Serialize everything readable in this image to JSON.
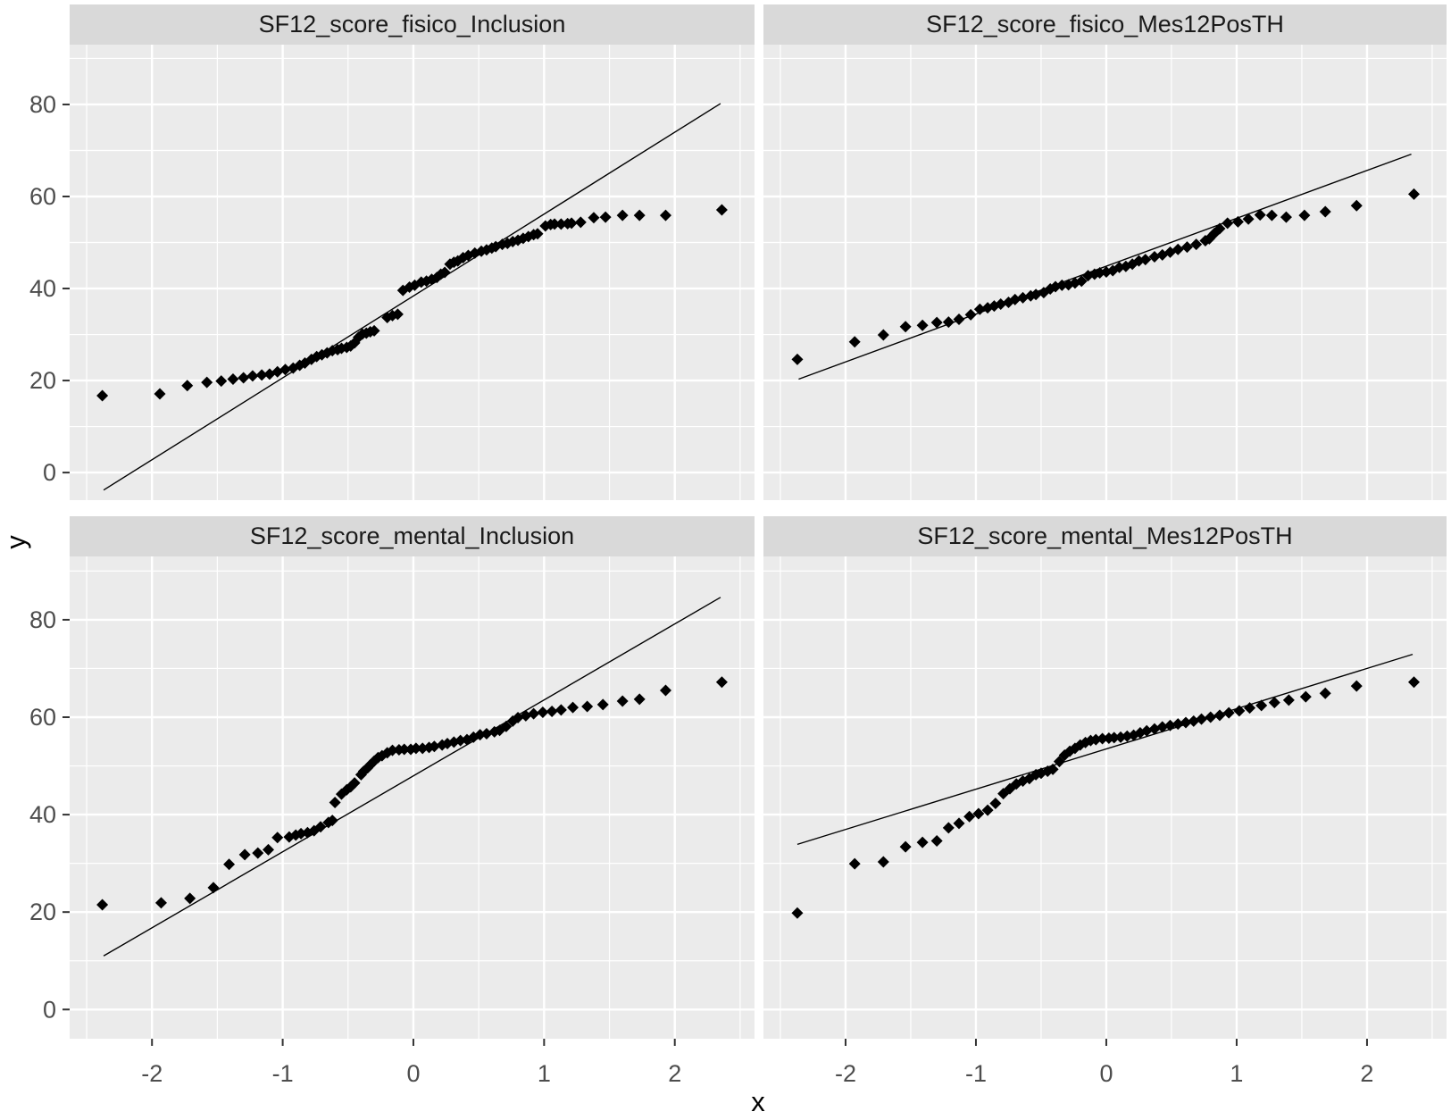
{
  "figure": {
    "background": "#ffffff",
    "panel_bg": "#ebebeb",
    "strip_bg": "#d9d9d9",
    "grid_color": "#ffffff",
    "point_color": "#000000",
    "line_color": "#000000",
    "axis_text_color": "#4d4d4d",
    "strip_text_color": "#1a1a1a",
    "tick_mark_color": "#333333"
  },
  "axes": {
    "x_title": "x",
    "y_title": "y",
    "x_ticks": [
      -2,
      -1,
      0,
      1,
      2
    ],
    "y_ticks": [
      0,
      20,
      40,
      60,
      80
    ],
    "x_minor": [
      -2.5,
      -1.5,
      -0.5,
      0.5,
      1.5,
      2.5
    ],
    "y_minor": [
      10,
      30,
      50,
      70,
      90
    ],
    "x_range": [
      -2.63,
      2.61
    ],
    "y_range": [
      -6,
      93
    ]
  },
  "chart_data": [
    {
      "type": "scatter",
      "title": "SF12_score_fisico_Inclusion",
      "xlabel": "x",
      "ylabel": "y",
      "legend": "none",
      "grid": "on",
      "line": {
        "x": [
          -2.37,
          2.35
        ],
        "y": [
          -3.8,
          80.2
        ]
      },
      "points": [
        [
          -2.38,
          16.7
        ],
        [
          -1.94,
          17.1
        ],
        [
          -1.73,
          18.9
        ],
        [
          -1.58,
          19.6
        ],
        [
          -1.47,
          19.9
        ],
        [
          -1.38,
          20.3
        ],
        [
          -1.3,
          20.6
        ],
        [
          -1.23,
          21.0
        ],
        [
          -1.16,
          21.2
        ],
        [
          -1.1,
          21.4
        ],
        [
          -1.04,
          21.9
        ],
        [
          -0.98,
          22.4
        ],
        [
          -0.92,
          22.7
        ],
        [
          -0.87,
          23.3
        ],
        [
          -0.83,
          23.8
        ],
        [
          -0.78,
          24.6
        ],
        [
          -0.74,
          25.2
        ],
        [
          -0.7,
          25.6
        ],
        [
          -0.66,
          26.0
        ],
        [
          -0.62,
          26.5
        ],
        [
          -0.58,
          26.7
        ],
        [
          -0.55,
          27.0
        ],
        [
          -0.51,
          27.2
        ],
        [
          -0.48,
          27.5
        ],
        [
          -0.45,
          28.2
        ],
        [
          -0.42,
          29.4
        ],
        [
          -0.39,
          30.1
        ],
        [
          -0.36,
          30.3
        ],
        [
          -0.33,
          30.6
        ],
        [
          -0.3,
          30.8
        ],
        [
          -0.2,
          33.7
        ],
        [
          -0.16,
          34.1
        ],
        [
          -0.12,
          34.4
        ],
        [
          -0.08,
          39.6
        ],
        [
          -0.03,
          40.3
        ],
        [
          0.01,
          40.7
        ],
        [
          0.06,
          41.4
        ],
        [
          0.1,
          41.6
        ],
        [
          0.14,
          42.0
        ],
        [
          0.18,
          42.4
        ],
        [
          0.21,
          43.1
        ],
        [
          0.24,
          43.5
        ],
        [
          0.28,
          45.3
        ],
        [
          0.31,
          45.7
        ],
        [
          0.34,
          46.0
        ],
        [
          0.38,
          46.7
        ],
        [
          0.42,
          47.2
        ],
        [
          0.47,
          47.7
        ],
        [
          0.52,
          48.1
        ],
        [
          0.56,
          48.4
        ],
        [
          0.6,
          48.8
        ],
        [
          0.63,
          49.1
        ],
        [
          0.68,
          49.6
        ],
        [
          0.72,
          49.8
        ],
        [
          0.76,
          50.2
        ],
        [
          0.8,
          50.5
        ],
        [
          0.84,
          50.9
        ],
        [
          0.88,
          51.3
        ],
        [
          0.92,
          51.7
        ],
        [
          0.95,
          51.9
        ],
        [
          1.01,
          53.6
        ],
        [
          1.05,
          53.9
        ],
        [
          1.08,
          54.0
        ],
        [
          1.13,
          54.0
        ],
        [
          1.18,
          54.1
        ],
        [
          1.21,
          54.2
        ],
        [
          1.28,
          54.4
        ],
        [
          1.38,
          55.4
        ],
        [
          1.47,
          55.5
        ],
        [
          1.6,
          55.9
        ],
        [
          1.73,
          55.9
        ],
        [
          1.93,
          55.9
        ],
        [
          2.36,
          57.1
        ]
      ]
    },
    {
      "type": "scatter",
      "title": "SF12_score_fisico_Mes12PosTH",
      "xlabel": "x",
      "ylabel": "y",
      "legend": "none",
      "grid": "on",
      "line": {
        "x": [
          -2.36,
          2.34
        ],
        "y": [
          20.3,
          69.2
        ]
      },
      "points": [
        [
          -2.37,
          24.6
        ],
        [
          -1.93,
          28.4
        ],
        [
          -1.71,
          29.9
        ],
        [
          -1.54,
          31.7
        ],
        [
          -1.41,
          32.0
        ],
        [
          -1.3,
          32.6
        ],
        [
          -1.21,
          32.7
        ],
        [
          -1.13,
          33.3
        ],
        [
          -1.04,
          34.3
        ],
        [
          -0.97,
          35.5
        ],
        [
          -0.91,
          35.8
        ],
        [
          -0.86,
          36.2
        ],
        [
          -0.81,
          36.6
        ],
        [
          -0.75,
          37.0
        ],
        [
          -0.7,
          37.6
        ],
        [
          -0.64,
          38.0
        ],
        [
          -0.58,
          38.4
        ],
        [
          -0.54,
          38.7
        ],
        [
          -0.48,
          39.1
        ],
        [
          -0.43,
          39.9
        ],
        [
          -0.39,
          40.4
        ],
        [
          -0.34,
          40.7
        ],
        [
          -0.29,
          40.8
        ],
        [
          -0.24,
          41.2
        ],
        [
          -0.19,
          41.6
        ],
        [
          -0.14,
          42.8
        ],
        [
          -0.09,
          43.1
        ],
        [
          -0.05,
          43.4
        ],
        [
          0.0,
          43.6
        ],
        [
          0.05,
          43.9
        ],
        [
          0.1,
          44.6
        ],
        [
          0.15,
          44.8
        ],
        [
          0.2,
          45.3
        ],
        [
          0.25,
          46.0
        ],
        [
          0.3,
          46.3
        ],
        [
          0.37,
          46.9
        ],
        [
          0.43,
          47.3
        ],
        [
          0.49,
          47.9
        ],
        [
          0.55,
          48.5
        ],
        [
          0.62,
          49.0
        ],
        [
          0.69,
          49.6
        ],
        [
          0.76,
          50.4
        ],
        [
          0.79,
          50.8
        ],
        [
          0.83,
          52.0
        ],
        [
          0.87,
          53.0
        ],
        [
          0.93,
          54.2
        ],
        [
          1.01,
          54.5
        ],
        [
          1.09,
          55.1
        ],
        [
          1.18,
          56.0
        ],
        [
          1.27,
          55.9
        ],
        [
          1.38,
          55.5
        ],
        [
          1.52,
          55.9
        ],
        [
          1.68,
          56.7
        ],
        [
          1.92,
          58.0
        ],
        [
          2.36,
          60.5
        ]
      ]
    },
    {
      "type": "scatter",
      "title": "SF12_score_mental_Inclusion",
      "xlabel": "x",
      "ylabel": "y",
      "legend": "none",
      "grid": "on",
      "line": {
        "x": [
          -2.37,
          2.35
        ],
        "y": [
          11.0,
          84.6
        ]
      },
      "points": [
        [
          -2.38,
          21.5
        ],
        [
          -1.93,
          21.9
        ],
        [
          -1.71,
          22.8
        ],
        [
          -1.53,
          25.0
        ],
        [
          -1.41,
          29.8
        ],
        [
          -1.29,
          31.8
        ],
        [
          -1.19,
          32.1
        ],
        [
          -1.11,
          32.8
        ],
        [
          -1.04,
          35.3
        ],
        [
          -0.95,
          35.4
        ],
        [
          -0.9,
          35.8
        ],
        [
          -0.86,
          36.1
        ],
        [
          -0.81,
          36.3
        ],
        [
          -0.76,
          36.7
        ],
        [
          -0.71,
          37.5
        ],
        [
          -0.65,
          38.4
        ],
        [
          -0.62,
          38.8
        ],
        [
          -0.6,
          42.5
        ],
        [
          -0.55,
          44.2
        ],
        [
          -0.51,
          45.1
        ],
        [
          -0.48,
          45.7
        ],
        [
          -0.45,
          46.5
        ],
        [
          -0.4,
          48.2
        ],
        [
          -0.38,
          48.9
        ],
        [
          -0.35,
          49.6
        ],
        [
          -0.33,
          50.2
        ],
        [
          -0.3,
          51.0
        ],
        [
          -0.27,
          51.7
        ],
        [
          -0.24,
          52.1
        ],
        [
          -0.2,
          52.7
        ],
        [
          -0.16,
          53.2
        ],
        [
          -0.11,
          53.3
        ],
        [
          -0.07,
          53.4
        ],
        [
          -0.02,
          53.4
        ],
        [
          0.02,
          53.6
        ],
        [
          0.07,
          53.6
        ],
        [
          0.12,
          53.8
        ],
        [
          0.16,
          54.0
        ],
        [
          0.22,
          54.3
        ],
        [
          0.26,
          54.6
        ],
        [
          0.31,
          54.9
        ],
        [
          0.36,
          55.2
        ],
        [
          0.41,
          55.4
        ],
        [
          0.46,
          55.9
        ],
        [
          0.51,
          56.4
        ],
        [
          0.56,
          56.6
        ],
        [
          0.62,
          57.0
        ],
        [
          0.66,
          57.3
        ],
        [
          0.71,
          58.1
        ],
        [
          0.76,
          59.2
        ],
        [
          0.8,
          59.9
        ],
        [
          0.86,
          60.3
        ],
        [
          0.92,
          60.7
        ],
        [
          0.99,
          61.0
        ],
        [
          1.06,
          61.2
        ],
        [
          1.13,
          61.5
        ],
        [
          1.22,
          62.0
        ],
        [
          1.33,
          62.2
        ],
        [
          1.45,
          62.6
        ],
        [
          1.6,
          63.3
        ],
        [
          1.73,
          63.7
        ],
        [
          1.93,
          65.5
        ],
        [
          2.36,
          67.2
        ]
      ]
    },
    {
      "type": "scatter",
      "title": "SF12_score_mental_Mes12PosTH",
      "xlabel": "x",
      "ylabel": "y",
      "legend": "none",
      "grid": "on",
      "line": {
        "x": [
          -2.37,
          2.35
        ],
        "y": [
          33.9,
          72.9
        ]
      },
      "points": [
        [
          -2.37,
          19.8
        ],
        [
          -1.93,
          29.9
        ],
        [
          -1.71,
          30.3
        ],
        [
          -1.54,
          33.4
        ],
        [
          -1.41,
          34.3
        ],
        [
          -1.3,
          34.6
        ],
        [
          -1.21,
          37.3
        ],
        [
          -1.13,
          38.2
        ],
        [
          -1.05,
          39.6
        ],
        [
          -0.98,
          40.2
        ],
        [
          -0.91,
          40.9
        ],
        [
          -0.85,
          42.3
        ],
        [
          -0.79,
          44.3
        ],
        [
          -0.74,
          45.3
        ],
        [
          -0.69,
          46.3
        ],
        [
          -0.64,
          46.9
        ],
        [
          -0.59,
          47.4
        ],
        [
          -0.54,
          48.2
        ],
        [
          -0.5,
          48.5
        ],
        [
          -0.45,
          48.9
        ],
        [
          -0.41,
          49.3
        ],
        [
          -0.36,
          50.9
        ],
        [
          -0.32,
          52.2
        ],
        [
          -0.28,
          53.0
        ],
        [
          -0.24,
          53.6
        ],
        [
          -0.2,
          54.3
        ],
        [
          -0.16,
          54.8
        ],
        [
          -0.12,
          55.2
        ],
        [
          -0.08,
          55.4
        ],
        [
          -0.03,
          55.6
        ],
        [
          0.02,
          55.7
        ],
        [
          0.06,
          55.8
        ],
        [
          0.11,
          55.9
        ],
        [
          0.16,
          56.1
        ],
        [
          0.21,
          56.3
        ],
        [
          0.26,
          56.8
        ],
        [
          0.31,
          57.2
        ],
        [
          0.37,
          57.6
        ],
        [
          0.43,
          58.0
        ],
        [
          0.49,
          58.3
        ],
        [
          0.55,
          58.6
        ],
        [
          0.61,
          58.9
        ],
        [
          0.67,
          59.2
        ],
        [
          0.73,
          59.6
        ],
        [
          0.8,
          60.0
        ],
        [
          0.87,
          60.4
        ],
        [
          0.94,
          60.9
        ],
        [
          1.02,
          61.3
        ],
        [
          1.1,
          61.9
        ],
        [
          1.19,
          62.4
        ],
        [
          1.29,
          63.0
        ],
        [
          1.4,
          63.5
        ],
        [
          1.53,
          64.2
        ],
        [
          1.68,
          64.9
        ],
        [
          1.92,
          66.4
        ],
        [
          2.36,
          67.2
        ]
      ]
    }
  ]
}
